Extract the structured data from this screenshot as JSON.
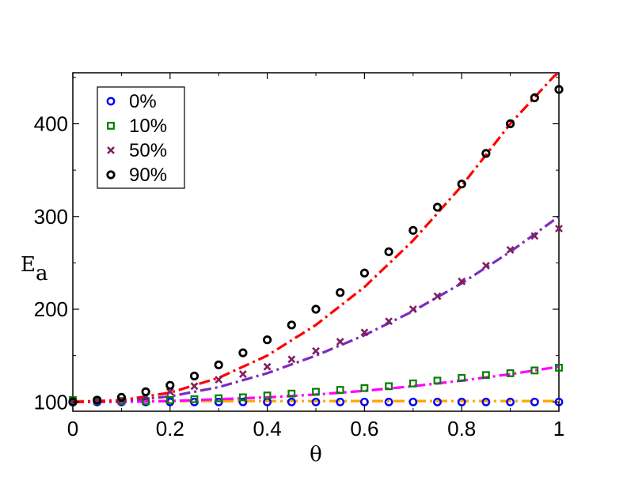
{
  "chart_data": {
    "type": "scatter",
    "title": "",
    "xlabel": "θ",
    "ylabel": "E",
    "ylabel_subscript": "a",
    "xlim": [
      0,
      1
    ],
    "ylim": [
      90,
      455
    ],
    "xticks": [
      0,
      0.2,
      0.4,
      0.6,
      0.8,
      1
    ],
    "xtick_labels": [
      "0",
      "0.2",
      "0.4",
      "0.6",
      "0.8",
      "1"
    ],
    "yticks": [
      100,
      200,
      300,
      400
    ],
    "ytick_labels": [
      "100",
      "200",
      "300",
      "400"
    ],
    "legend_position": "top-left",
    "series": [
      {
        "name": "0%",
        "marker": "circle",
        "color": "#0000ff",
        "x": [
          0.0,
          0.05,
          0.1,
          0.15,
          0.2,
          0.25,
          0.3,
          0.35,
          0.4,
          0.45,
          0.5,
          0.55,
          0.6,
          0.65,
          0.7,
          0.75,
          0.8,
          0.85,
          0.9,
          0.95,
          1.0
        ],
        "y": [
          100,
          100,
          100,
          100,
          100,
          100,
          100,
          100,
          100,
          100,
          100,
          100,
          100,
          100,
          100,
          100,
          100,
          100,
          100,
          100,
          100
        ]
      },
      {
        "name": "10%",
        "marker": "square",
        "color": "#008000",
        "x": [
          0.0,
          0.05,
          0.1,
          0.15,
          0.2,
          0.25,
          0.3,
          0.35,
          0.4,
          0.45,
          0.5,
          0.55,
          0.6,
          0.65,
          0.7,
          0.75,
          0.8,
          0.85,
          0.9,
          0.95,
          1.0
        ],
        "y": [
          102,
          101,
          101,
          101,
          102,
          103,
          104,
          105,
          107,
          109,
          111,
          113,
          115,
          117,
          120,
          123,
          126,
          129,
          131,
          134,
          137
        ]
      },
      {
        "name": "50%",
        "marker": "x",
        "color": "#7f1f5f",
        "x": [
          0.0,
          0.05,
          0.1,
          0.15,
          0.2,
          0.25,
          0.3,
          0.35,
          0.4,
          0.45,
          0.5,
          0.55,
          0.6,
          0.65,
          0.7,
          0.75,
          0.8,
          0.85,
          0.9,
          0.95,
          1.0
        ],
        "y": [
          100,
          101,
          102,
          106,
          111,
          117,
          124,
          130,
          138,
          146,
          155,
          165,
          175,
          187,
          200,
          214,
          230,
          247,
          264,
          279,
          287
        ]
      },
      {
        "name": "90%",
        "marker": "circle-filled",
        "color": "#000000",
        "x": [
          0.0,
          0.05,
          0.1,
          0.15,
          0.2,
          0.25,
          0.3,
          0.35,
          0.4,
          0.45,
          0.5,
          0.55,
          0.6,
          0.65,
          0.7,
          0.75,
          0.8,
          0.85,
          0.9,
          0.95,
          1.0
        ],
        "y": [
          100,
          102,
          105,
          111,
          118,
          128,
          140,
          153,
          167,
          183,
          200,
          218,
          239,
          262,
          285,
          310,
          335,
          368,
          400,
          428,
          437
        ]
      }
    ],
    "fit_lines": [
      {
        "name": "fit-0%",
        "color": "#ffa500",
        "style": "dash-dot",
        "x": [
          0,
          0.25,
          0.5,
          0.75,
          1.0
        ],
        "y": [
          101,
          101,
          101,
          101,
          101
        ]
      },
      {
        "name": "fit-10%",
        "color": "#ff00ff",
        "style": "dash-dot",
        "x": [
          0,
          0.1,
          0.2,
          0.3,
          0.4,
          0.5,
          0.6,
          0.7,
          0.8,
          0.9,
          1.0
        ],
        "y": [
          100,
          100,
          101,
          103,
          105,
          108,
          112,
          117,
          123,
          130,
          138
        ]
      },
      {
        "name": "fit-50%",
        "color": "#7b2cbf",
        "style": "dash-dot",
        "x": [
          0,
          0.1,
          0.2,
          0.3,
          0.4,
          0.5,
          0.6,
          0.7,
          0.8,
          0.9,
          1.0
        ],
        "y": [
          100,
          101,
          106,
          116,
          131,
          150,
          172,
          198,
          228,
          262,
          300
        ]
      },
      {
        "name": "fit-90%",
        "color": "#ff0000",
        "style": "dash-dot",
        "x": [
          0,
          0.1,
          0.2,
          0.3,
          0.4,
          0.5,
          0.6,
          0.7,
          0.8,
          0.9,
          1.0
        ],
        "y": [
          100,
          102,
          110,
          126,
          150,
          183,
          224,
          274,
          333,
          400,
          457
        ]
      }
    ]
  }
}
